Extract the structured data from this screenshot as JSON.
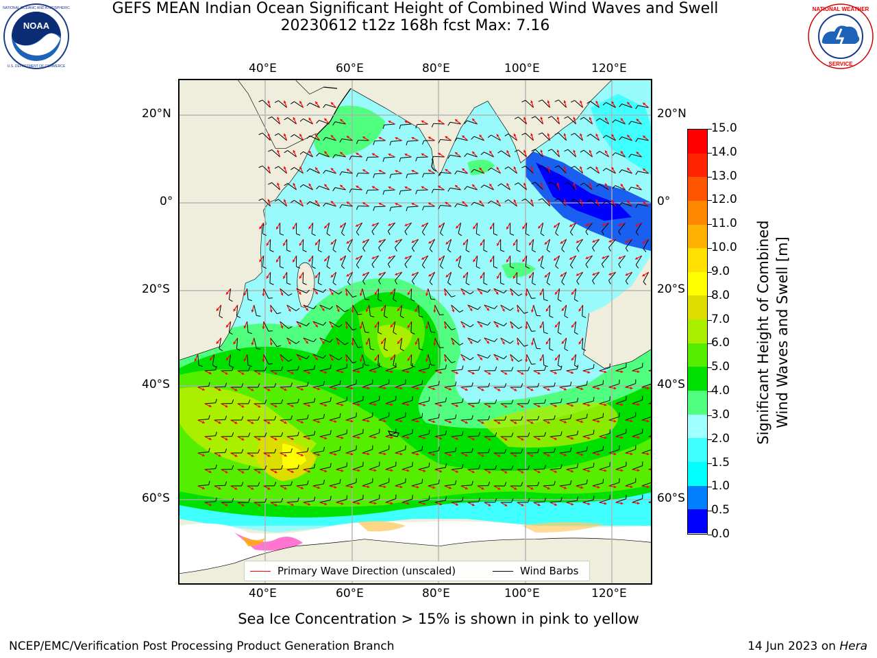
{
  "title": {
    "line1": "GEFS MEAN Indian Ocean Significant Height of Combined Wind Waves and Swell",
    "line2": "20230612 t12z 168h fcst   Max: 7.16"
  },
  "logos": {
    "noaa": {
      "text": "NOAA",
      "ring_text": "NATIONAL OCEANIC AND ATMOSPHERIC ADMINISTRATION · U.S. DEPARTMENT OF COMMERCE",
      "icon": "noaa-logo"
    },
    "nws": {
      "ring_text": "NATIONAL WEATHER SERVICE",
      "icon": "nws-logo"
    }
  },
  "map": {
    "lon_ticks_top": [
      "40°E",
      "60°E",
      "80°E",
      "100°E",
      "120°E"
    ],
    "lon_ticks_bottom": [
      "40°E",
      "60°E",
      "80°E",
      "100°E",
      "120°E"
    ],
    "lat_ticks_left": [
      "20°N",
      "0°",
      "20°S",
      "40°S",
      "60°S"
    ],
    "lat_ticks_right": [
      "20°N",
      "0°",
      "20°S",
      "40°S",
      "60°S"
    ],
    "land_color": "#efeedd",
    "ice_color": "#ffffff"
  },
  "legend": {
    "wave_direction": "Primary Wave Direction (unscaled)",
    "wind_barbs": "Wind Barbs",
    "wave_color": "#ff0000",
    "barb_color": "#000000"
  },
  "colorbar": {
    "label_line1": "Significant Height of Combined",
    "label_line2": "Wind Waves and Swell [m]",
    "tick_labels": [
      "0.0",
      "0.5",
      "1.0",
      "1.5",
      "2.0",
      "3.0",
      "4.0",
      "5.0",
      "6.0",
      "7.0",
      "8.0",
      "9.0",
      "10.0",
      "11.0",
      "12.0",
      "13.0",
      "14.0",
      "15.0"
    ],
    "colors": [
      "#0000ff",
      "#0080ff",
      "#00ffff",
      "#40ffff",
      "#a0ffff",
      "#50ff80",
      "#00e000",
      "#55ee00",
      "#aaee00",
      "#dddd00",
      "#ffff00",
      "#ffe000",
      "#ffb000",
      "#ff8800",
      "#ff5500",
      "#ff2200",
      "#ff0000"
    ]
  },
  "ice_note": "Sea Ice Concentration > 15% is shown in pink to yellow",
  "footer": {
    "left": "NCEP/EMC/Verification Post Processing Product Generation Branch",
    "right_date": "14 Jun 2023 on",
    "right_host": "Hera"
  }
}
